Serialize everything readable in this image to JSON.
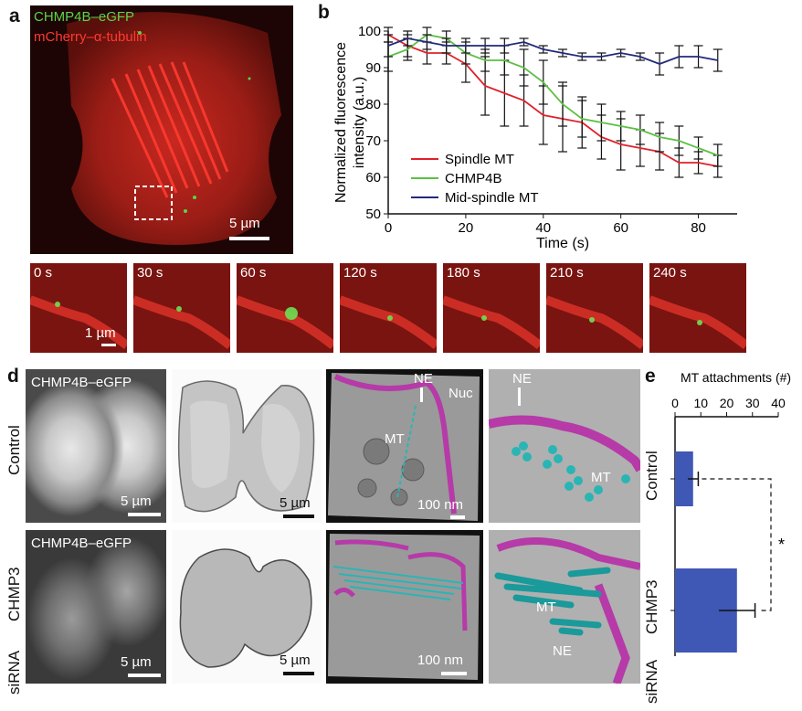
{
  "panel_a": {
    "letter": "a",
    "label_green": "CHMP4B–eGFP",
    "label_red": "mCherry–α-tubulin",
    "scale": "5 µm",
    "timelapse": [
      "0 s",
      "30 s",
      "60 s",
      "120 s",
      "180 s",
      "210 s",
      "240 s"
    ],
    "timelapse_scale": "1 µm"
  },
  "panel_b": {
    "letter": "b"
  },
  "panel_d": {
    "letter": "d",
    "row_labels": [
      "Control",
      "CHMP3",
      "siRNA"
    ],
    "top": {
      "gfp_label": "CHMP4B–eGFP",
      "scale_gfp": "5 µm",
      "scale_em": "5 µm",
      "tomo_labels": [
        "NE",
        "Nuc",
        "MT"
      ],
      "scale_tomo": "100 nm",
      "model_labels": [
        "NE",
        "MT"
      ]
    },
    "bottom": {
      "gfp_label": "CHMP4B–eGFP",
      "scale_gfp": "5 µm",
      "scale_em": "5 µm",
      "scale_tomo": "100 nm",
      "model_labels": [
        "MT",
        "NE"
      ]
    }
  },
  "panel_e": {
    "letter": "e",
    "significance": "*"
  },
  "colors": {
    "spindle": "#e0202a",
    "chmp4b": "#5cc043",
    "midspindle": "#222a7a",
    "bar": "#3f57b5",
    "membrane": "#b63aa8",
    "microtubule": "#2ab5b5"
  },
  "chart_data": [
    {
      "type": "line",
      "xlabel": "Time (s)",
      "ylabel": "Normalized fluorescence intensity (a.u.)",
      "xlim": [
        0,
        90
      ],
      "ylim": [
        50,
        100
      ],
      "xticks": [
        0,
        20,
        40,
        60,
        80
      ],
      "yticks": [
        50,
        60,
        70,
        80,
        90,
        100
      ],
      "legend_position": "lower-left",
      "series": [
        {
          "name": "Spindle MT",
          "x": [
            0,
            5,
            10,
            15,
            20,
            25,
            30,
            35,
            40,
            45,
            50,
            55,
            60,
            65,
            70,
            75,
            80,
            85
          ],
          "y": [
            99,
            96,
            94,
            94,
            91,
            85,
            83,
            81,
            77,
            76,
            75,
            71,
            69,
            68,
            67,
            64,
            64,
            63
          ],
          "err": [
            2,
            3,
            3,
            3,
            5,
            8,
            9,
            7,
            8,
            9,
            7,
            6,
            7,
            5,
            5,
            4,
            3,
            3
          ]
        },
        {
          "name": "CHMP4B",
          "x": [
            0,
            5,
            10,
            15,
            20,
            25,
            30,
            35,
            40,
            45,
            50,
            55,
            60,
            65,
            70,
            75,
            80,
            85
          ],
          "y": [
            93,
            95,
            99,
            98,
            94,
            92,
            92,
            90,
            86,
            80,
            76,
            75,
            74,
            73,
            71,
            70,
            68,
            66
          ],
          "err": [
            4,
            3,
            2,
            2,
            3,
            3,
            4,
            5,
            6,
            6,
            5,
            5,
            4,
            4,
            4,
            4,
            3,
            3
          ]
        },
        {
          "name": "Mid-spindle MT",
          "x": [
            0,
            5,
            10,
            15,
            20,
            25,
            30,
            35,
            40,
            45,
            50,
            55,
            60,
            65,
            70,
            75,
            80,
            85
          ],
          "y": [
            96,
            98,
            97,
            96,
            96,
            96,
            96,
            97,
            95,
            94,
            93,
            93,
            94,
            93,
            91,
            93,
            93,
            92
          ],
          "err": [
            3,
            2,
            2,
            2,
            2,
            2,
            2,
            1,
            1,
            1,
            1,
            1,
            1,
            1,
            3,
            3,
            3,
            3
          ]
        }
      ]
    },
    {
      "type": "bar",
      "orientation": "horizontal",
      "title": "MT attachments (#)",
      "categories": [
        "Control",
        "CHMP3 siRNA"
      ],
      "values": [
        7,
        24
      ],
      "errors": [
        2,
        7
      ],
      "xlim": [
        0,
        40
      ],
      "xticks": [
        0,
        10,
        20,
        30,
        40
      ]
    }
  ]
}
